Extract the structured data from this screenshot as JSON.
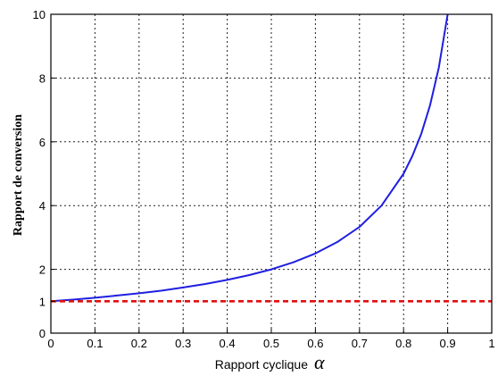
{
  "chart_data": {
    "type": "line",
    "xlabel": "Rapport cyclique",
    "xlabel_symbol": "α",
    "ylabel": "Rapport de conversion",
    "xlim": [
      0,
      1
    ],
    "ylim": [
      0,
      10
    ],
    "grid": true,
    "x_ticks": [
      "0",
      "0.1",
      "0.2",
      "0.3",
      "0.4",
      "0.5",
      "0.6",
      "0.7",
      "0.8",
      "0.9",
      "1"
    ],
    "y_ticks": [
      "0",
      "1",
      "2",
      "4",
      "6",
      "8",
      "10"
    ],
    "series": [
      {
        "color": "#1f1fe0",
        "style": "solid",
        "x": [
          0,
          0.05,
          0.1,
          0.15,
          0.2,
          0.25,
          0.3,
          0.35,
          0.4,
          0.45,
          0.5,
          0.55,
          0.6,
          0.65,
          0.7,
          0.75,
          0.8,
          0.82,
          0.84,
          0.86,
          0.88,
          0.9
        ],
        "values": [
          1,
          1.05,
          1.11,
          1.18,
          1.25,
          1.33,
          1.43,
          1.54,
          1.67,
          1.82,
          2,
          2.22,
          2.5,
          2.86,
          3.33,
          4,
          5,
          5.56,
          6.25,
          7.14,
          8.33,
          10
        ]
      },
      {
        "color": "#e01010",
        "style": "dashed",
        "x": [
          0,
          1
        ],
        "values": [
          1,
          1
        ]
      }
    ]
  }
}
